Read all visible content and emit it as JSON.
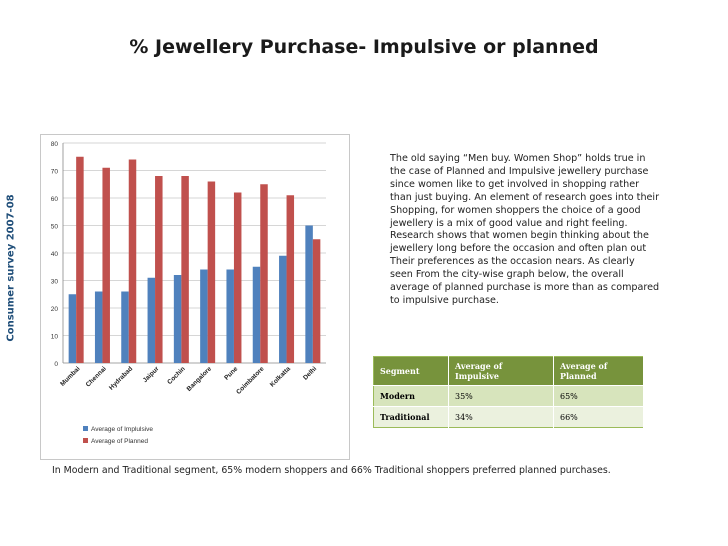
{
  "title": "% Jewellery Purchase- Impulsive or planned",
  "side_label": "Consumer survey 2007-08",
  "paragraph": "The old saying “Men buy. Women Shop” holds true in the case of Planned and Impulsive jewellery purchase since women like to get involved in shopping rather than just buying. An element of research goes into their Shopping, for women shoppers the choice of a good jewellery is a mix of good value and right feeling. Research shows that women begin thinking about the jewellery long before the occasion and often plan out Their preferences as the occasion nears. As clearly seen From the city-wise graph below, the overall average of planned purchase is more than as compared to impulsive purchase.",
  "table": {
    "headers": [
      "Segment",
      "Average of Impulsive",
      "Average of Planned"
    ],
    "rows": [
      [
        "Modern",
        "35%",
        "65%"
      ],
      [
        "Traditional",
        "34%",
        "66%"
      ]
    ]
  },
  "bottom_note": "In Modern and Traditional segment, 65% modern shoppers and 66% Traditional shoppers preferred planned purchases.",
  "chart_data": {
    "type": "bar",
    "categories": [
      "Mumbai",
      "Chennai",
      "Hydrabad",
      "Jaipur",
      "Cochin",
      "Bangalore",
      "Pune",
      "Coimbatore",
      "Kolkatta",
      "Delhi"
    ],
    "series": [
      {
        "name": "Average of Implulsive",
        "values": [
          25,
          26,
          26,
          31,
          32,
          34,
          34,
          35,
          39,
          50
        ],
        "color": "#4f81bd"
      },
      {
        "name": "Average of Planned",
        "values": [
          75,
          71,
          74,
          68,
          68,
          66,
          62,
          65,
          61,
          45
        ],
        "color": "#c0504d"
      }
    ],
    "ylim": [
      0,
      80
    ],
    "yticks": [
      "0",
      "10",
      "20",
      "30",
      "40",
      "50",
      "60",
      "70",
      "80"
    ],
    "grid": true,
    "legend_position": "bottom-left"
  }
}
